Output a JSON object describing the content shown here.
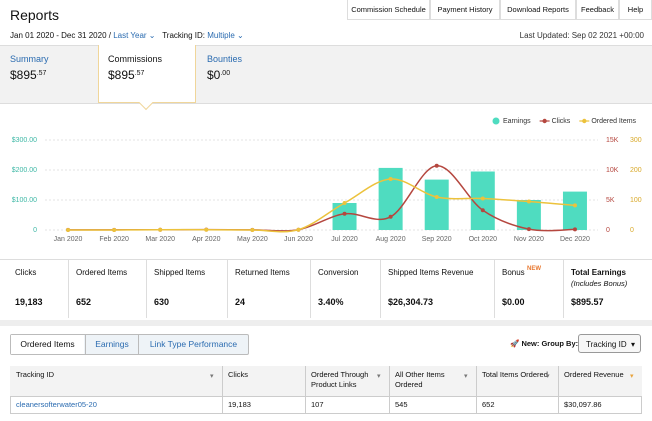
{
  "header": {
    "title": "Reports",
    "buttons": [
      "Commission Schedule",
      "Payment History",
      "Download Reports",
      "Feedback",
      "Help"
    ],
    "date_range": "Jan 01 2020 - Dec 31 2020 /",
    "period": "Last Year",
    "tracking_label": "Tracking ID:",
    "tracking_value": "Multiple",
    "last_updated": "Last Updated: Sep 02 2021 +00:00"
  },
  "summary_tabs": [
    {
      "label": "Summary",
      "amount": "$895",
      "cents": ".57"
    },
    {
      "label": "Commissions",
      "amount": "$895",
      "cents": ".57"
    },
    {
      "label": "Bounties",
      "amount": "$0",
      "cents": ".00"
    }
  ],
  "chart_data": {
    "type": "bar",
    "categories": [
      "Jan 2020",
      "Feb 2020",
      "Mar 2020",
      "Apr 2020",
      "May 2020",
      "Jun 2020",
      "Jul 2020",
      "Aug 2020",
      "Sep 2020",
      "Oct 2020",
      "Nov 2020",
      "Dec 2020"
    ],
    "series": [
      {
        "name": "Earnings",
        "type": "bar",
        "color": "#4fdcc0",
        "axis": "y",
        "values": [
          0,
          0,
          0,
          0,
          0,
          0,
          90,
          207,
          168,
          195,
          100,
          128
        ]
      },
      {
        "name": "Clicks",
        "type": "line",
        "color": "#b5473f",
        "axis": "y2",
        "values": [
          20,
          30,
          40,
          60,
          30,
          50,
          2700,
          2200,
          10700,
          3300,
          150,
          100
        ]
      },
      {
        "name": "Ordered Items",
        "type": "line",
        "color": "#ecc23c",
        "axis": "y3",
        "values": [
          0,
          0,
          1,
          1,
          0,
          1,
          90,
          170,
          110,
          105,
          95,
          82
        ]
      }
    ],
    "ylim": [
      0,
      300
    ],
    "yticks": [
      0,
      {
        "value": 100,
        "label": "$100.00"
      },
      {
        "value": 200,
        "label": "$200.00"
      },
      {
        "value": 300,
        "label": "$300.00"
      }
    ],
    "y2lim": [
      0,
      15000
    ],
    "y2ticks": [
      0,
      {
        "value": 5000,
        "label": "5K"
      },
      {
        "value": 10000,
        "label": "10K"
      },
      {
        "value": 15000,
        "label": "15K"
      }
    ],
    "y3lim": [
      0,
      300
    ],
    "y3ticks": [
      0,
      100,
      200,
      300
    ],
    "grid": true,
    "legend": "top-right"
  },
  "stats": [
    {
      "label": "Clicks",
      "value": "19,183"
    },
    {
      "label": "Ordered Items",
      "value": "652"
    },
    {
      "label": "Shipped Items",
      "value": "630"
    },
    {
      "label": "Returned Items",
      "value": "24"
    },
    {
      "label": "Conversion",
      "value": "3.40%"
    },
    {
      "label": "Shipped Items Revenue",
      "value": "$26,304.73"
    },
    {
      "label": "Bonus",
      "value": "$0.00"
    },
    {
      "label": "Total Earnings",
      "value": "$895.57"
    }
  ],
  "bonus_badge": "NEW",
  "total_note": "(Includes Bonus)",
  "table": {
    "tabs": [
      "Ordered Items",
      "Earnings",
      "Link Type Performance"
    ],
    "new_label": "New:",
    "group_by": "Group By:",
    "group_value": "Tracking ID",
    "columns": [
      "Tracking ID",
      "Clicks",
      "Ordered Through Product Links",
      "All Other Items Ordered",
      "Total Items Ordered",
      "Ordered Revenue"
    ],
    "rows": [
      [
        "cleanersofterwater05-20",
        "19,183",
        "107",
        "545",
        "652",
        "$30,097.86"
      ]
    ]
  }
}
